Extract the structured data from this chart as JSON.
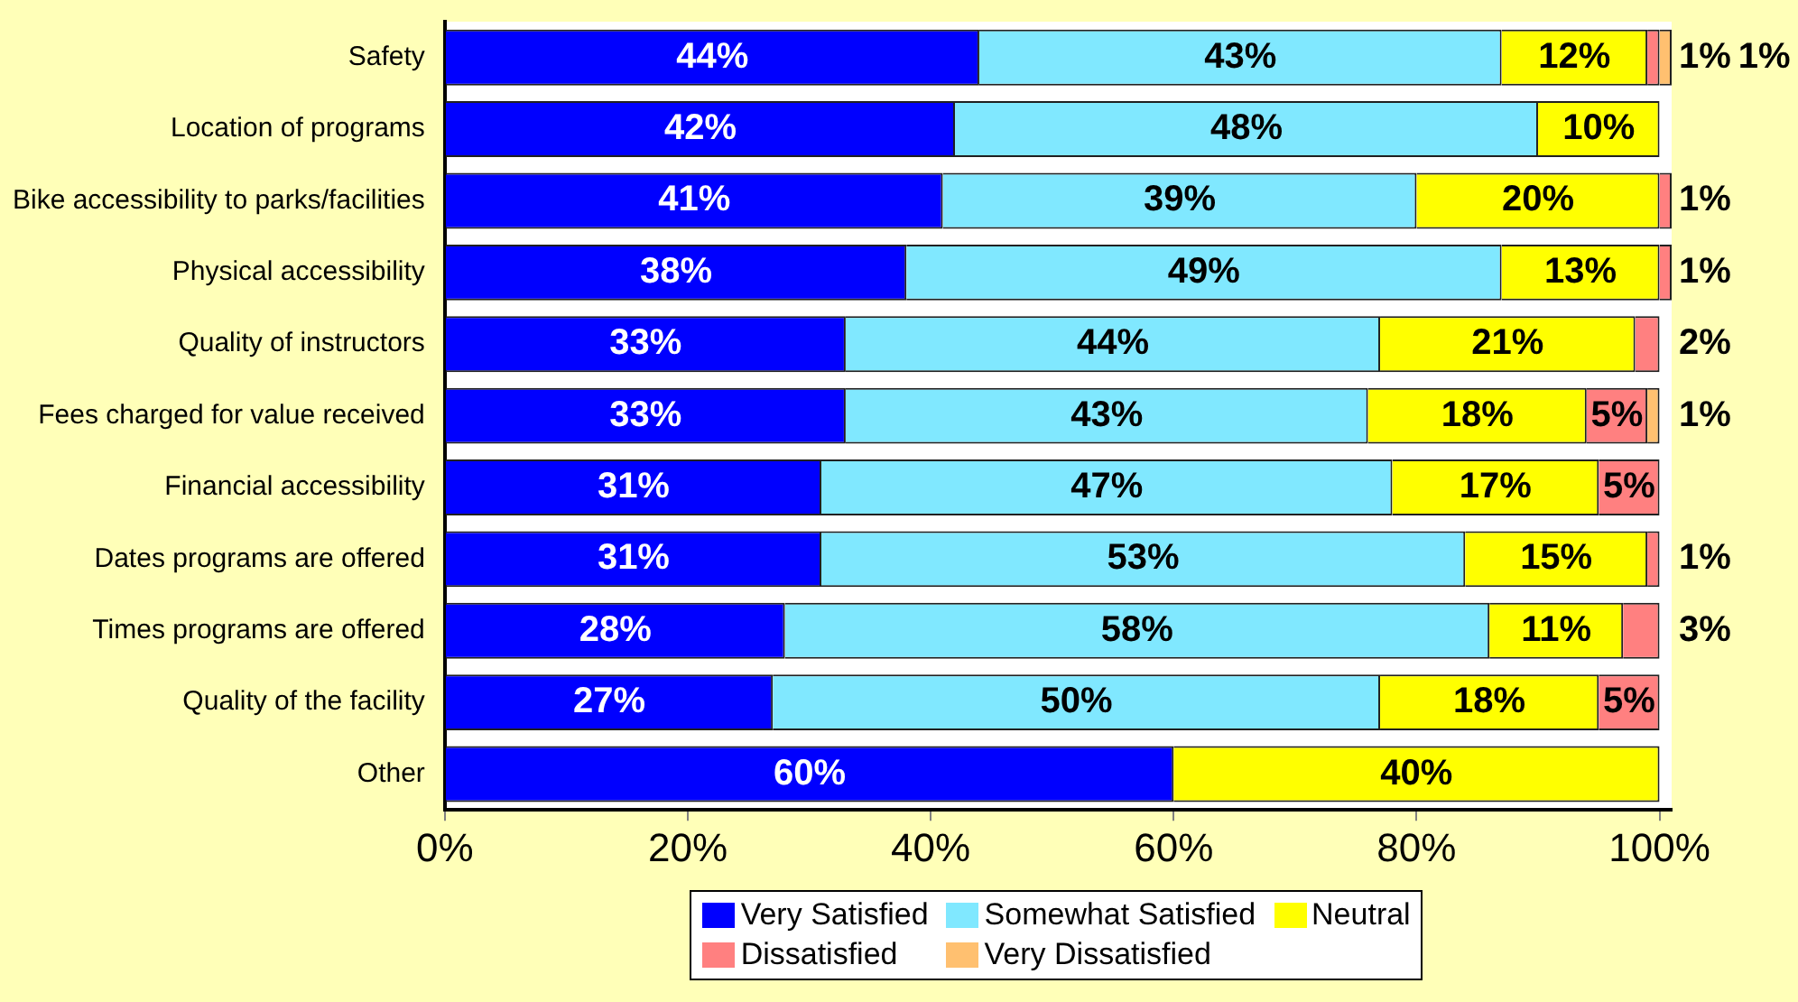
{
  "chart_data": {
    "type": "bar",
    "orientation": "horizontal",
    "stacked": true,
    "legend": "bottom",
    "grid": false,
    "categories": [
      "Safety",
      "Location of programs",
      "Bike accessibility to parks/facilities",
      "Physical accessibility",
      "Quality of instructors",
      "Fees charged for value received",
      "Financial accessibility",
      "Dates programs are offered",
      "Times programs are offered",
      "Quality of the facility",
      "Other"
    ],
    "xlim": [
      0,
      101
    ],
    "xticks": [
      {
        "value": 0,
        "label": "0%"
      },
      {
        "value": 20,
        "label": "20%"
      },
      {
        "value": 40,
        "label": "40%"
      },
      {
        "value": 60,
        "label": "60%"
      },
      {
        "value": 80,
        "label": "80%"
      },
      {
        "value": 100,
        "label": "100%"
      }
    ],
    "series": [
      {
        "name": "Very Satisfied",
        "color": "#0000ff",
        "values": [
          44,
          42,
          41,
          38,
          33,
          33,
          31,
          31,
          28,
          27,
          60
        ],
        "value_labels": [
          "44%",
          "42%",
          "41%",
          "38%",
          "33%",
          "33%",
          "31%",
          "31%",
          "28%",
          "27%",
          "60%"
        ]
      },
      {
        "name": "Somewhat Satisfied",
        "color": "#80e8ff",
        "values": [
          43,
          48,
          39,
          49,
          44,
          43,
          47,
          53,
          58,
          50,
          null
        ],
        "value_labels": [
          "43%",
          "48%",
          "39%",
          "49%",
          "44%",
          "43%",
          "47%",
          "53%",
          "58%",
          "50%",
          null
        ]
      },
      {
        "name": "Neutral",
        "color": "#ffff00",
        "values": [
          12,
          10,
          20,
          13,
          21,
          18,
          17,
          15,
          11,
          18,
          40
        ],
        "value_labels": [
          "12%",
          "10%",
          "20%",
          "13%",
          "21%",
          "18%",
          "17%",
          "15%",
          "11%",
          "18%",
          "40%"
        ]
      },
      {
        "name": "Dissatisfied",
        "color": "#ff8080",
        "values": [
          1,
          null,
          1,
          1,
          2,
          5,
          5,
          1,
          3,
          5,
          null
        ],
        "value_labels": [
          "1%",
          null,
          "1%",
          "1%",
          "2%",
          "5%",
          "5%",
          "1%",
          "3%",
          "5%",
          null
        ]
      },
      {
        "name": "Very Dissatisfied",
        "color": "#ffc070",
        "values": [
          1,
          null,
          null,
          null,
          null,
          1,
          null,
          null,
          null,
          null,
          null
        ],
        "value_labels": [
          "1%",
          null,
          null,
          null,
          null,
          "1%",
          null,
          null,
          null,
          null,
          null
        ]
      }
    ]
  }
}
